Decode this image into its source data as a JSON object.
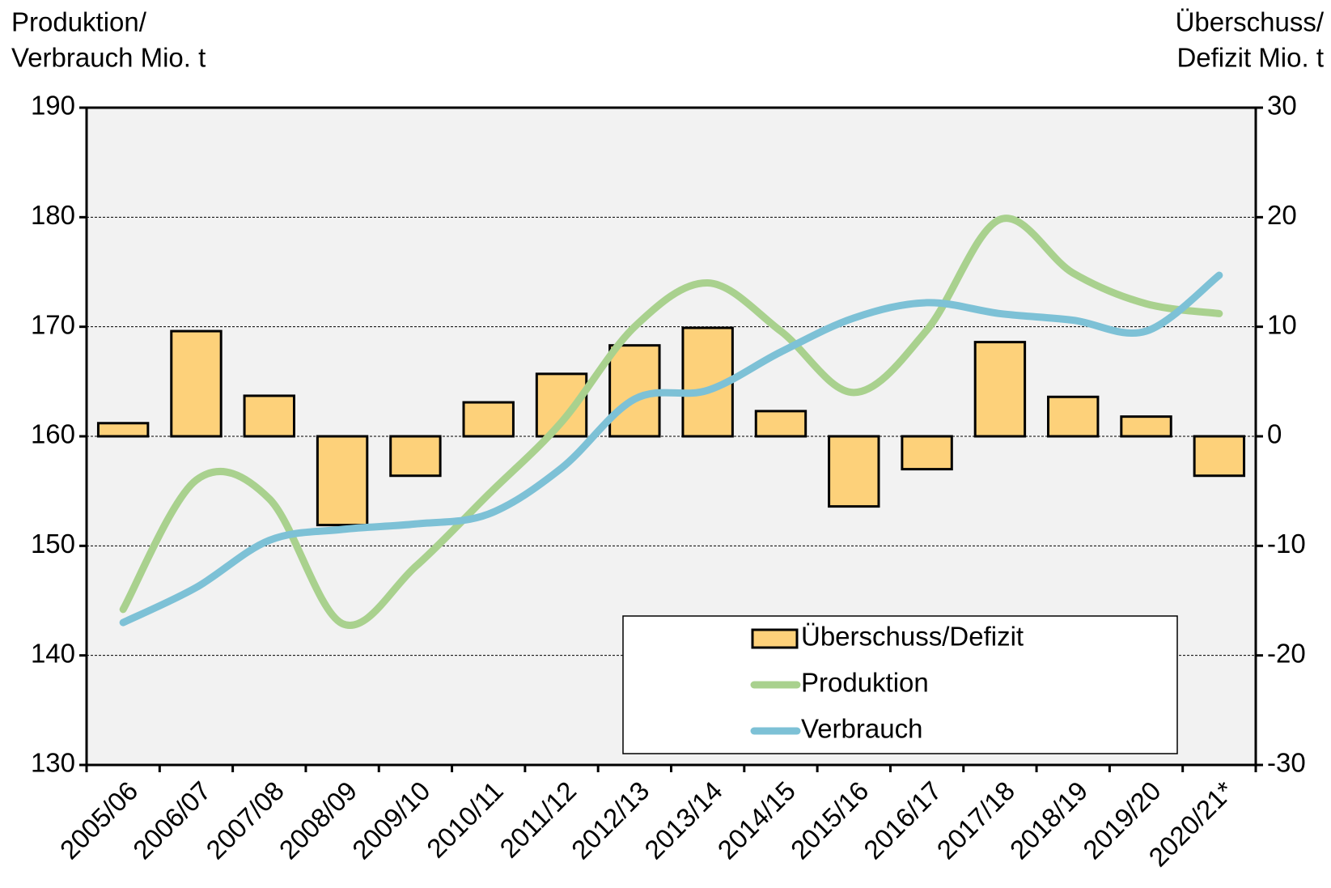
{
  "chart_data": {
    "type": "bar_line",
    "ylabel": [
      "Produktion/",
      "Verbrauch Mio. t"
    ],
    "y2label": [
      "Überschuss/",
      "Defizit Mio. t"
    ],
    "categories": [
      "2005/06",
      "2006/07",
      "2007/08",
      "2008/09",
      "2009/10",
      "2010/11",
      "2011/12",
      "2012/13",
      "2013/14",
      "2014/15",
      "2015/16",
      "2016/17",
      "2017/18",
      "2018/19",
      "2019/20",
      "2020/21*"
    ],
    "series": [
      {
        "name": "Überschuss/Defizit",
        "type": "bar",
        "axis": "y2",
        "color": "#fdd17a",
        "values": [
          1.2,
          9.6,
          3.7,
          -8.1,
          -3.6,
          3.1,
          5.7,
          8.3,
          9.9,
          2.3,
          -6.4,
          -3.0,
          8.6,
          3.6,
          1.8,
          -3.6
        ]
      },
      {
        "name": "Produktion",
        "type": "line",
        "color": "#a9d18e",
        "values": [
          144.2,
          156.0,
          154.3,
          142.9,
          148.1,
          154.7,
          161.3,
          170.0,
          174.0,
          169.6,
          164.0,
          169.7,
          179.8,
          174.9,
          172.1,
          171.2
        ]
      },
      {
        "name": "Verbrauch",
        "type": "line",
        "color": "#7dc1d6",
        "values": [
          143.0,
          146.2,
          150.5,
          151.5,
          152.0,
          152.9,
          157.1,
          163.4,
          164.2,
          167.7,
          170.8,
          172.2,
          171.2,
          170.6,
          169.6,
          174.7
        ]
      }
    ],
    "ylim": [
      130,
      190
    ],
    "yticks": [
      130,
      140,
      150,
      160,
      170,
      180,
      190
    ],
    "y2lim": [
      -30,
      30
    ],
    "y2ticks": [
      -30,
      -20,
      -10,
      0,
      10,
      20,
      30
    ],
    "grid": true,
    "legend": "bottom-right"
  }
}
